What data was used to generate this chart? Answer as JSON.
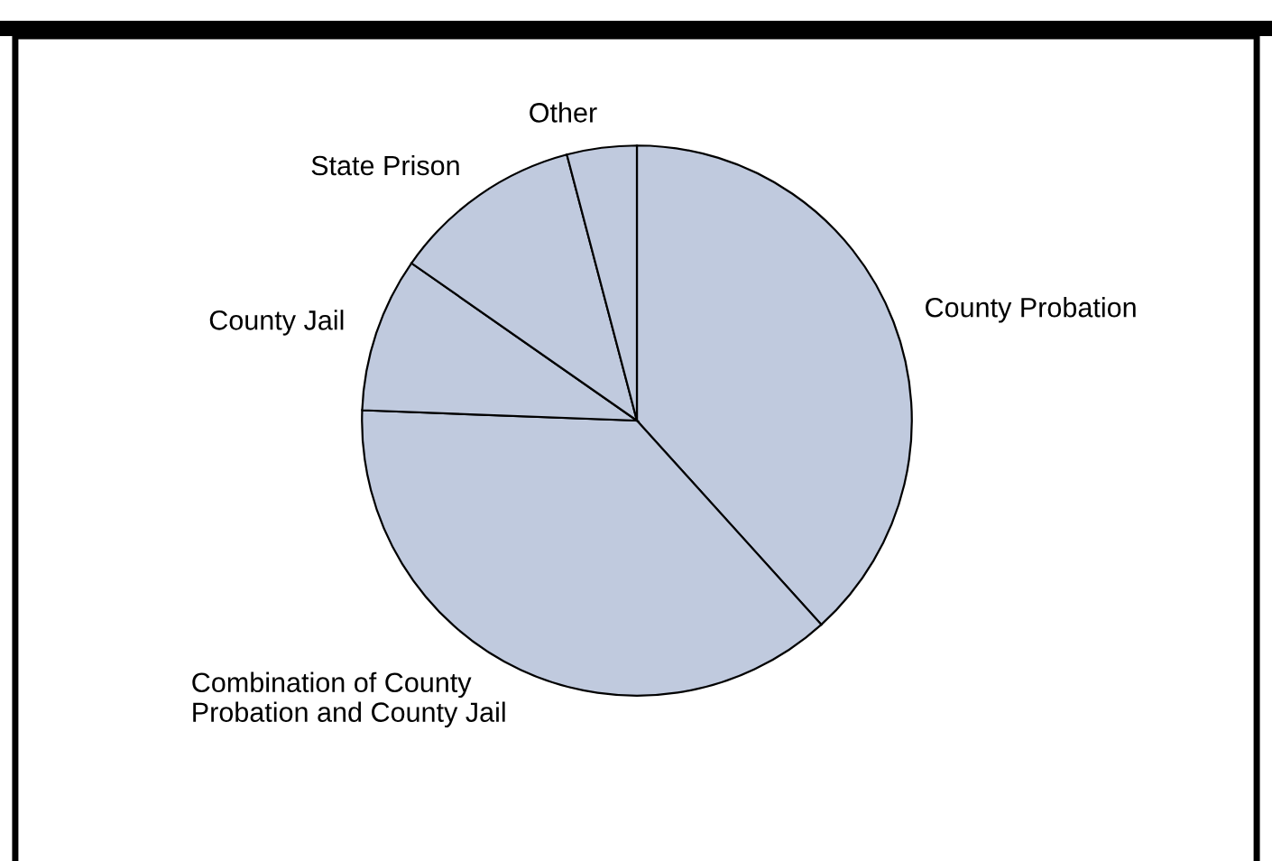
{
  "chart_data": {
    "type": "pie",
    "categories": [
      "County Probation",
      "Combination of County\nProbation and County Jail",
      "County Jail",
      "State Prison",
      "Other"
    ],
    "values": [
      38.3,
      37.3,
      9.1,
      11.2,
      4.1
    ],
    "colors": [
      "#c0cade",
      "#c0cade",
      "#c0cade",
      "#c0cade",
      "#c0cade"
    ]
  }
}
